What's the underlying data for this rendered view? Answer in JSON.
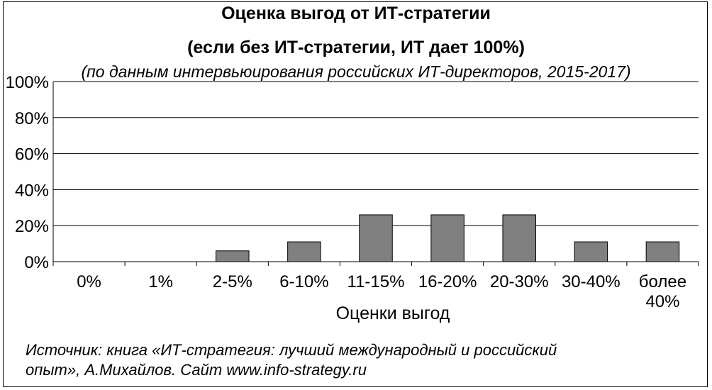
{
  "chart_data": {
    "type": "bar",
    "title": "Оценка выгод от ИТ-стратегии",
    "subtitle_line": "(если без ИТ-стратегии, ИТ дает 100%)",
    "note": "(по данным интервьюирования российских ИТ-директоров, 2015-2017)",
    "xlabel": "Оценки выгод",
    "ylabel": "",
    "categories": [
      "0%",
      "1%",
      "2-5%",
      "6-10%",
      "11-15%",
      "16-20%",
      "20-30%",
      "30-40%",
      "более 40%"
    ],
    "values": [
      0,
      0,
      6,
      11,
      26,
      26,
      26,
      11,
      11
    ],
    "ylim": [
      0,
      100
    ],
    "yticks": [
      "0%",
      "20%",
      "40%",
      "60%",
      "80%",
      "100%"
    ],
    "grid": true,
    "bar_color": "#808080"
  },
  "source": {
    "line1": "Источник: книга «ИТ-стратегия: лучший международный и российский",
    "line2": "опыт», А.Михайлов.  Сайт www.info-strategy.ru"
  }
}
